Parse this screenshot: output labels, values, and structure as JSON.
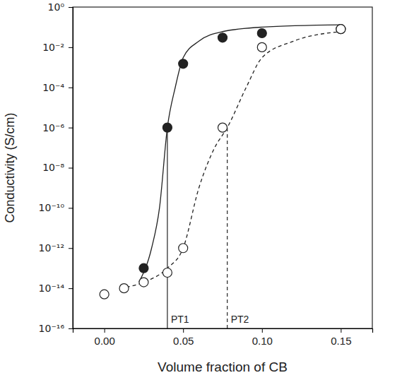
{
  "chart_data": {
    "type": "scatter",
    "x_label": "Volume fraction of CB",
    "y_label": "Conductivity (S/cm)",
    "log": "y",
    "xlim": [
      -0.02,
      0.17
    ],
    "ylim": [
      1e-16,
      1
    ],
    "xticks": [
      {
        "value": 0,
        "label": "0.00"
      },
      0.05,
      {
        "value": 0.1,
        "label": "0.10"
      },
      0.15
    ],
    "yticks": [
      {
        "value": 1e-16,
        "label": "10⁻¹⁶"
      },
      {
        "value": 1e-14,
        "label": "10⁻¹⁴"
      },
      {
        "value": 1e-12,
        "label": "10⁻¹²"
      },
      {
        "value": 1e-10,
        "label": "10⁻¹⁰"
      },
      {
        "value": 1e-08,
        "label": "10⁻⁸"
      },
      {
        "value": 1e-06,
        "label": "10⁻⁶"
      },
      {
        "value": 0.0001,
        "label": "10⁻⁴"
      },
      {
        "value": 0.01,
        "label": "10⁻²"
      },
      {
        "value": 1,
        "label": "10⁰"
      }
    ],
    "series": [
      {
        "type": "scatter",
        "marker": "filled",
        "color": "#222222",
        "x": [
          0.025,
          0.04,
          0.05,
          0.075,
          0.1,
          0.15
        ],
        "values": [
          1e-13,
          1e-06,
          0.0015,
          0.03,
          0.05,
          0.08
        ]
      },
      {
        "type": "scatter",
        "marker": "open",
        "color": "#222222",
        "x": [
          0,
          0.0125,
          0.025,
          0.04,
          0.05,
          0.075,
          0.1,
          0.15
        ],
        "values": [
          5e-15,
          1e-14,
          2e-14,
          6e-14,
          1e-12,
          1e-06,
          0.01,
          0.08
        ]
      },
      {
        "type": "line",
        "line_style": "solid",
        "color": "#222222",
        "x": [
          0.022,
          0.03,
          0.035,
          0.04,
          0.045,
          0.05,
          0.06,
          0.075,
          0.1,
          0.15
        ],
        "values": [
          2e-14,
          1e-12,
          1e-10,
          1e-06,
          0.0001,
          0.003,
          0.02,
          0.06,
          0.1,
          0.13
        ]
      },
      {
        "type": "line",
        "line_style": "dashed",
        "color": "#222222",
        "x": [
          0.01,
          0.025,
          0.04,
          0.05,
          0.06,
          0.07,
          0.078,
          0.09,
          0.1,
          0.12,
          0.15
        ],
        "values": [
          1e-14,
          2e-14,
          1e-13,
          1e-12,
          1e-09,
          1e-07,
          1e-06,
          0.0001,
          0.003,
          0.02,
          0.06
        ]
      }
    ],
    "annotations": [
      {
        "text": "PT1",
        "x": 0.04,
        "y": 1e-06,
        "line_style": "solid"
      },
      {
        "text": "PT2",
        "x": 0.078,
        "y": 1e-06,
        "line_style": "dashed"
      }
    ]
  }
}
